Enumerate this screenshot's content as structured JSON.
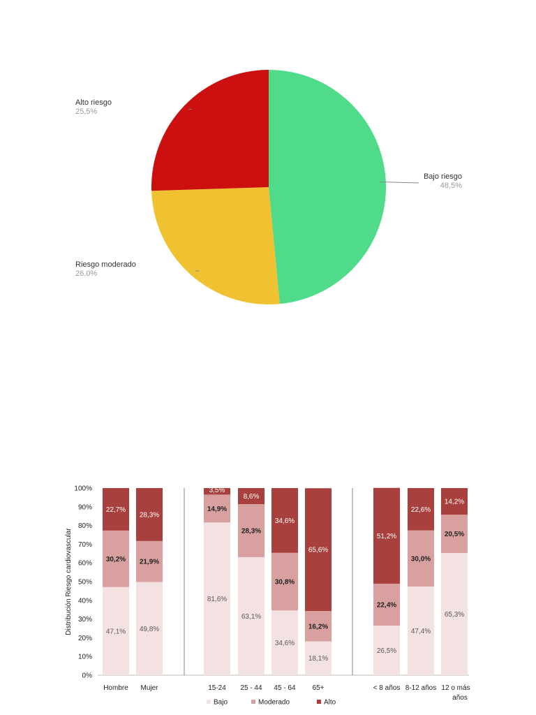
{
  "chart_data": [
    {
      "type": "pie",
      "slices": [
        {
          "label": "Bajo riesgo",
          "value_label": "48,5%",
          "value": 48.5,
          "color": "#4fdb8a"
        },
        {
          "label": "Riesgo moderado",
          "value_label": "26,0%",
          "value": 26.0,
          "color": "#f0c232"
        },
        {
          "label": "Alto riesgo",
          "value_label": "25,5%",
          "value": 25.5,
          "color": "#cc0f0f"
        }
      ]
    },
    {
      "type": "bar",
      "stacked": true,
      "ylabel": "Distribución Riesgo cardiovascular",
      "ylim": [
        0,
        100
      ],
      "yticks": [
        "0%",
        "10%",
        "20%",
        "30%",
        "40%",
        "50%",
        "60%",
        "70%",
        "80%",
        "90%",
        "100%"
      ],
      "grid": false,
      "legend_position": "bottom",
      "groups": [
        {
          "categories": [
            "Hombre",
            "Mujer"
          ]
        },
        {
          "categories": [
            "15-24",
            "25 - 44",
            "45 - 64",
            "65+"
          ]
        },
        {
          "categories": [
            "< 8 años",
            "8-12 años",
            "12 o más años"
          ]
        }
      ],
      "categories": [
        "Hombre",
        "Mujer",
        "15-24",
        "25 - 44",
        "45 - 64",
        "65+",
        "< 8 años",
        "8-12 años",
        "12 o más años"
      ],
      "series": [
        {
          "name": "Bajo",
          "color": "#f4e1e1",
          "label_color": "#5a5a5a",
          "bold": false,
          "values": [
            47.1,
            49.8,
            81.6,
            63.1,
            34.6,
            18.1,
            26.5,
            47.4,
            65.3
          ],
          "labels": [
            "47,1%",
            "49,8%",
            "81,6%",
            "63,1%",
            "34,6%",
            "18,1%",
            "26,5%",
            "47,4%",
            "65,3%"
          ]
        },
        {
          "name": "Moderado",
          "color": "#d9a0a0",
          "label_color": "#222222",
          "bold": true,
          "values": [
            30.2,
            21.9,
            14.9,
            28.3,
            30.8,
            16.2,
            22.4,
            30.0,
            20.5
          ],
          "labels": [
            "30,2%",
            "21,9%",
            "14,9%",
            "28,3%",
            "30,8%",
            "16,2%",
            "22,4%",
            "30,0%",
            "20,5%"
          ]
        },
        {
          "name": "Alto",
          "color": "#a8413e",
          "label_color": "#ffffff",
          "bold": false,
          "values": [
            22.7,
            28.3,
            3.5,
            8.6,
            34.6,
            65.6,
            51.2,
            22.6,
            14.2
          ],
          "labels": [
            "22,7%",
            "28,3%",
            "3,5%",
            "8,6%",
            "34,6%",
            "65,6%",
            "51,2%",
            "22,6%",
            "14,2%"
          ]
        }
      ]
    }
  ]
}
